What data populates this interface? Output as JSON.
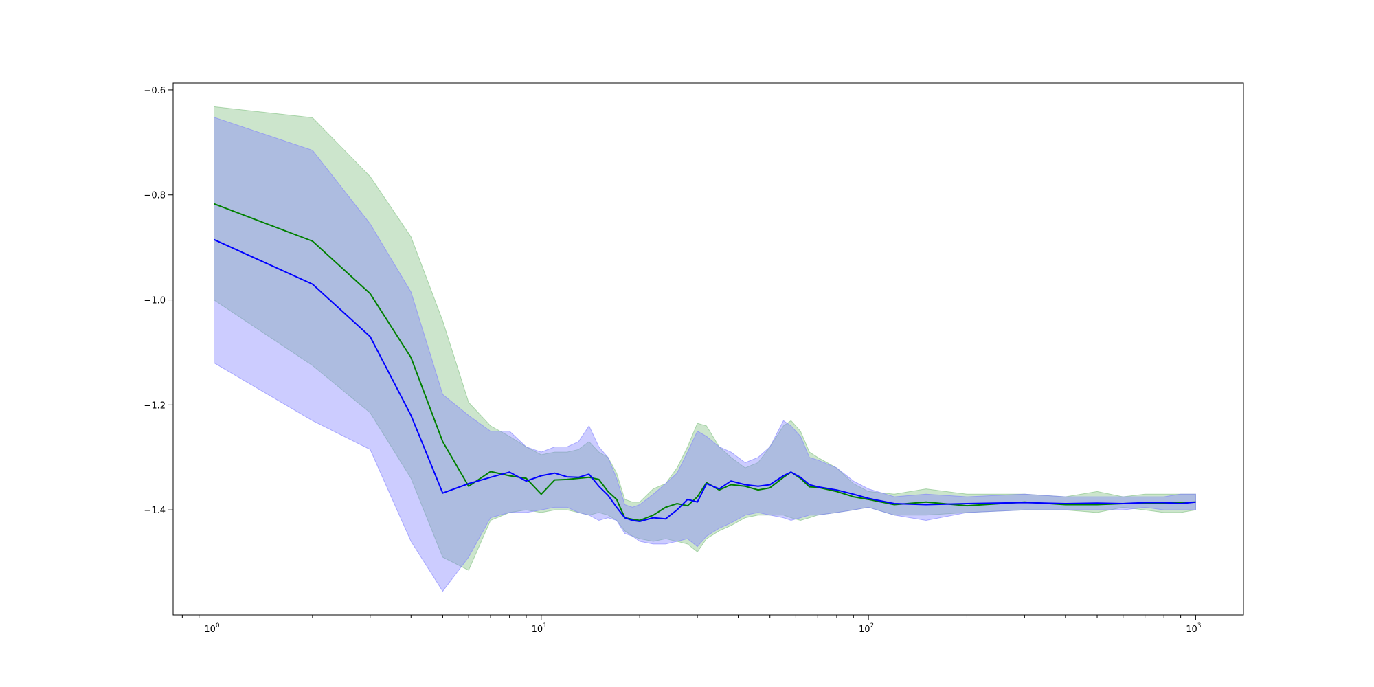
{
  "chart_data": {
    "type": "line",
    "title": "",
    "xlabel": "",
    "ylabel": "",
    "xscale": "log",
    "xlim": [
      0.75,
      1400
    ],
    "ylim": [
      -1.6,
      -0.587
    ],
    "grid": false,
    "legend": "none",
    "x_ticks": [
      {
        "base": "10",
        "exp": "0",
        "value": 1
      },
      {
        "base": "10",
        "exp": "1",
        "value": 10
      },
      {
        "base": "10",
        "exp": "2",
        "value": 100
      },
      {
        "base": "10",
        "exp": "3",
        "value": 1000
      }
    ],
    "y_ticks": [
      {
        "label": "−0.6",
        "value": -0.6
      },
      {
        "label": "−0.8",
        "value": -0.8
      },
      {
        "label": "−1.0",
        "value": -1.0
      },
      {
        "label": "−1.2",
        "value": -1.2
      },
      {
        "label": "−1.4",
        "value": -1.4
      }
    ],
    "series": [
      {
        "color": "#008000",
        "band_color": "#7fbf7f",
        "band_opacity": 0.4,
        "x": [
          1,
          2,
          3,
          4,
          5,
          6,
          7,
          8,
          9,
          10,
          11,
          12,
          13,
          14,
          15,
          16,
          17,
          18,
          19,
          20,
          22,
          24,
          26,
          28,
          30,
          32,
          35,
          38,
          42,
          46,
          50,
          55,
          58,
          62,
          66,
          70,
          80,
          90,
          100,
          120,
          150,
          200,
          300,
          400,
          500,
          600,
          700,
          800,
          900,
          1000
        ],
        "mean": [
          -0.817,
          -0.888,
          -0.988,
          -1.11,
          -1.27,
          -1.355,
          -1.327,
          -1.335,
          -1.34,
          -1.37,
          -1.343,
          -1.342,
          -1.34,
          -1.338,
          -1.342,
          -1.365,
          -1.38,
          -1.415,
          -1.418,
          -1.42,
          -1.41,
          -1.395,
          -1.388,
          -1.392,
          -1.375,
          -1.348,
          -1.362,
          -1.352,
          -1.355,
          -1.362,
          -1.358,
          -1.338,
          -1.328,
          -1.34,
          -1.356,
          -1.357,
          -1.365,
          -1.375,
          -1.38,
          -1.39,
          -1.385,
          -1.392,
          -1.385,
          -1.39,
          -1.39,
          -1.388,
          -1.387,
          -1.387,
          -1.386,
          -1.385
        ],
        "upper": [
          -0.632,
          -0.653,
          -0.765,
          -0.88,
          -1.04,
          -1.195,
          -1.24,
          -1.26,
          -1.28,
          -1.295,
          -1.29,
          -1.29,
          -1.285,
          -1.27,
          -1.29,
          -1.3,
          -1.33,
          -1.38,
          -1.385,
          -1.385,
          -1.36,
          -1.35,
          -1.32,
          -1.28,
          -1.235,
          -1.24,
          -1.28,
          -1.3,
          -1.32,
          -1.31,
          -1.28,
          -1.24,
          -1.23,
          -1.25,
          -1.29,
          -1.3,
          -1.32,
          -1.35,
          -1.365,
          -1.37,
          -1.36,
          -1.37,
          -1.37,
          -1.375,
          -1.365,
          -1.375,
          -1.37,
          -1.37,
          -1.37,
          -1.37
        ],
        "lower": [
          -1.0,
          -1.125,
          -1.215,
          -1.34,
          -1.49,
          -1.515,
          -1.42,
          -1.405,
          -1.4,
          -1.405,
          -1.4,
          -1.4,
          -1.405,
          -1.41,
          -1.405,
          -1.41,
          -1.42,
          -1.44,
          -1.45,
          -1.455,
          -1.46,
          -1.455,
          -1.46,
          -1.465,
          -1.48,
          -1.455,
          -1.44,
          -1.43,
          -1.415,
          -1.41,
          -1.41,
          -1.41,
          -1.415,
          -1.42,
          -1.415,
          -1.41,
          -1.405,
          -1.4,
          -1.395,
          -1.41,
          -1.41,
          -1.405,
          -1.4,
          -1.4,
          -1.405,
          -1.395,
          -1.4,
          -1.405,
          -1.405,
          -1.4
        ]
      },
      {
        "color": "#0000ff",
        "band_color": "#7f7fff",
        "band_opacity": 0.4,
        "x": [
          1,
          2,
          3,
          4,
          5,
          6,
          7,
          8,
          9,
          10,
          11,
          12,
          13,
          14,
          15,
          16,
          17,
          18,
          19,
          20,
          22,
          24,
          26,
          28,
          30,
          32,
          35,
          38,
          42,
          46,
          50,
          55,
          58,
          62,
          66,
          70,
          80,
          90,
          100,
          120,
          150,
          200,
          300,
          400,
          500,
          600,
          700,
          800,
          900,
          1000
        ],
        "mean": [
          -0.885,
          -0.97,
          -1.07,
          -1.22,
          -1.368,
          -1.35,
          -1.338,
          -1.328,
          -1.345,
          -1.335,
          -1.33,
          -1.337,
          -1.338,
          -1.332,
          -1.355,
          -1.372,
          -1.395,
          -1.415,
          -1.42,
          -1.422,
          -1.415,
          -1.417,
          -1.4,
          -1.38,
          -1.385,
          -1.35,
          -1.36,
          -1.345,
          -1.352,
          -1.355,
          -1.352,
          -1.335,
          -1.328,
          -1.338,
          -1.352,
          -1.356,
          -1.362,
          -1.37,
          -1.378,
          -1.388,
          -1.39,
          -1.388,
          -1.386,
          -1.388,
          -1.387,
          -1.388,
          -1.386,
          -1.386,
          -1.388,
          -1.385
        ],
        "upper": [
          -0.652,
          -0.715,
          -0.855,
          -0.985,
          -1.18,
          -1.22,
          -1.25,
          -1.25,
          -1.28,
          -1.29,
          -1.28,
          -1.28,
          -1.27,
          -1.24,
          -1.28,
          -1.3,
          -1.34,
          -1.39,
          -1.395,
          -1.39,
          -1.37,
          -1.35,
          -1.33,
          -1.29,
          -1.25,
          -1.26,
          -1.28,
          -1.29,
          -1.31,
          -1.3,
          -1.28,
          -1.23,
          -1.24,
          -1.26,
          -1.3,
          -1.305,
          -1.32,
          -1.345,
          -1.36,
          -1.375,
          -1.37,
          -1.375,
          -1.37,
          -1.375,
          -1.375,
          -1.375,
          -1.375,
          -1.375,
          -1.37,
          -1.37
        ],
        "lower": [
          -1.12,
          -1.23,
          -1.285,
          -1.46,
          -1.555,
          -1.49,
          -1.415,
          -1.405,
          -1.405,
          -1.4,
          -1.395,
          -1.395,
          -1.405,
          -1.41,
          -1.42,
          -1.415,
          -1.42,
          -1.445,
          -1.45,
          -1.46,
          -1.465,
          -1.465,
          -1.46,
          -1.455,
          -1.47,
          -1.45,
          -1.435,
          -1.425,
          -1.41,
          -1.405,
          -1.41,
          -1.415,
          -1.42,
          -1.415,
          -1.41,
          -1.41,
          -1.405,
          -1.4,
          -1.395,
          -1.41,
          -1.42,
          -1.405,
          -1.4,
          -1.4,
          -1.4,
          -1.4,
          -1.395,
          -1.4,
          -1.4,
          -1.4
        ]
      }
    ]
  }
}
